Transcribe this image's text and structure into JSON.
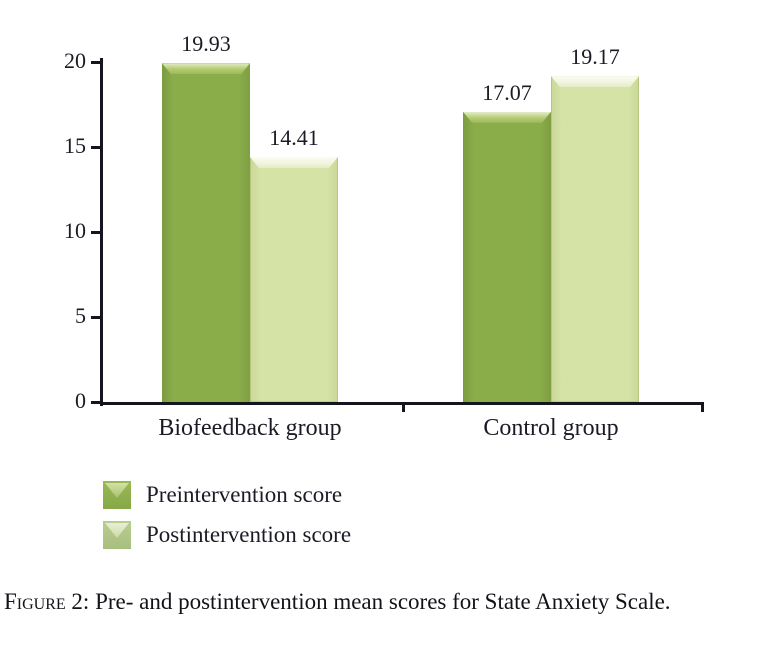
{
  "figure": {
    "caption_label": "Figure 2:",
    "caption_text": "Pre- and postintervention mean scores for State Anxiety Scale."
  },
  "chart_data": {
    "type": "bar",
    "categories": [
      "Biofeedback group",
      "Control group"
    ],
    "series": [
      {
        "name": "Preintervention score",
        "values": [
          19.93,
          17.07
        ],
        "color": "#8aad4a",
        "key": "pre"
      },
      {
        "name": "Postintervention score",
        "values": [
          14.41,
          19.17
        ],
        "color": "#d6e3a6",
        "key": "post"
      }
    ],
    "value_labels": [
      "19.93",
      "14.41",
      "17.07",
      "19.17"
    ],
    "yticks": [
      0,
      5,
      10,
      15,
      20
    ],
    "ylim": [
      0,
      20
    ],
    "title": "",
    "xlabel": "",
    "ylabel": "",
    "grid": false,
    "legend_position": "bottom-left",
    "bar_style": "3d-beveled"
  },
  "colors": {
    "preintervention_bar": "#8aad4a",
    "postintervention_bar": "#d6e3a6",
    "axis": "#15151f",
    "text": "#1b1b26",
    "background": "#ffffff"
  }
}
